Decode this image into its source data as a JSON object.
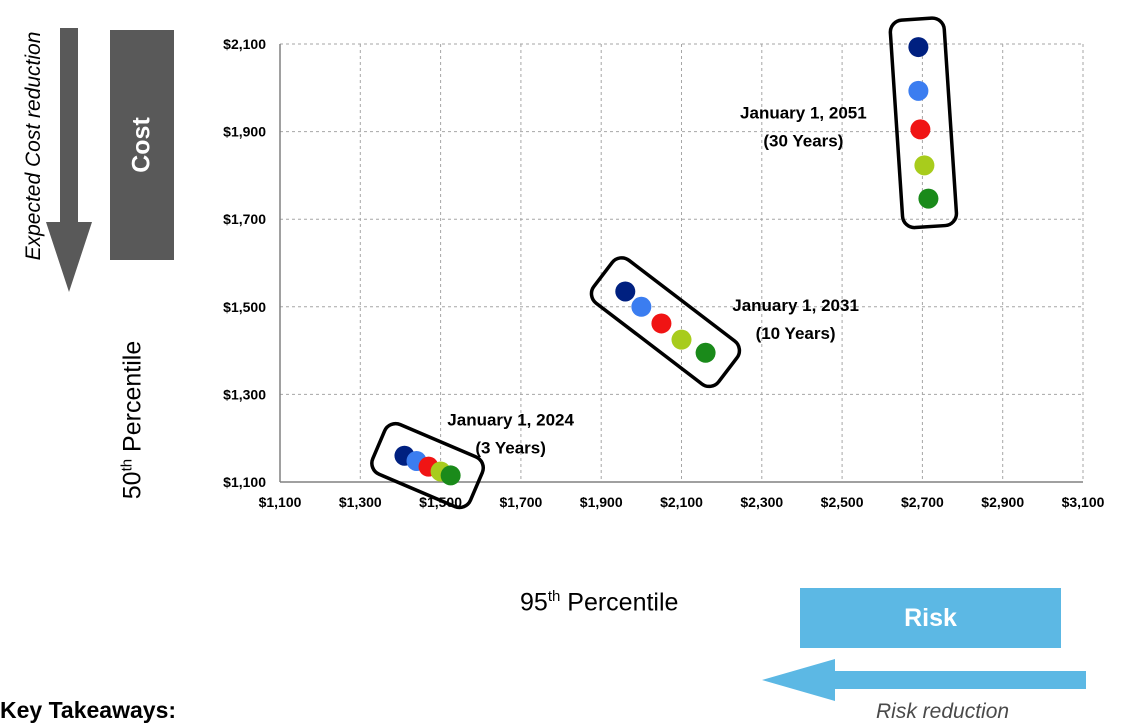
{
  "chart_data": {
    "type": "scatter",
    "xlabel": "95th Percentile",
    "ylabel": "50th Percentile",
    "xlim": [
      1100,
      3100
    ],
    "ylim": [
      1100,
      2100
    ],
    "x_ticks": [
      1100,
      1300,
      1500,
      1700,
      1900,
      2100,
      2300,
      2500,
      2700,
      2900,
      3100
    ],
    "y_ticks": [
      1100,
      1300,
      1500,
      1700,
      1900,
      2100
    ],
    "x_tick_labels": [
      "$1,100",
      "$1,300",
      "$1,500",
      "$1,700",
      "$1,900",
      "$2,100",
      "$2,300",
      "$2,500",
      "$2,700",
      "$2,900",
      "$3,100"
    ],
    "y_tick_labels": [
      "$1,100",
      "$1,300",
      "$1,500",
      "$1,700",
      "$1,900",
      "$2,100"
    ],
    "grid": true,
    "point_colors": [
      "#002080",
      "#3b7df0",
      "#f01414",
      "#a8cc1c",
      "#1a8a1a"
    ],
    "groups": [
      {
        "label_line1": "January 1, 2024",
        "label_line2": "(3 Years)",
        "points": [
          {
            "x": 1410,
            "y": 1160
          },
          {
            "x": 1440,
            "y": 1148
          },
          {
            "x": 1470,
            "y": 1135
          },
          {
            "x": 1500,
            "y": 1124
          },
          {
            "x": 1525,
            "y": 1115
          }
        ]
      },
      {
        "label_line1": "January 1, 2031",
        "label_line2": "(10 Years)",
        "points": [
          {
            "x": 1960,
            "y": 1535
          },
          {
            "x": 2000,
            "y": 1500
          },
          {
            "x": 2050,
            "y": 1462
          },
          {
            "x": 2100,
            "y": 1425
          },
          {
            "x": 2160,
            "y": 1395
          }
        ]
      },
      {
        "label_line1": "January 1, 2051",
        "label_line2": "(30 Years)",
        "points": [
          {
            "x": 2690,
            "y": 2093
          },
          {
            "x": 2690,
            "y": 1993
          },
          {
            "x": 2695,
            "y": 1905
          },
          {
            "x": 2705,
            "y": 1823
          },
          {
            "x": 2715,
            "y": 1747
          }
        ]
      }
    ]
  },
  "labels": {
    "cost": "Cost",
    "cost_caption": "Expected Cost reduction",
    "ylabel_prefix": "50",
    "ylabel_sup": "th",
    "ylabel_suffix": " Percentile",
    "xlabel_prefix": "95",
    "xlabel_sup": "th",
    "xlabel_suffix": " Percentile",
    "risk": "Risk",
    "risk_caption": "Risk reduction",
    "takeaways_heading": "Key Takeaways:"
  },
  "colors": {
    "cost_box": "#595959",
    "risk_box": "#5cb8e4",
    "cost_arrow": "#595959",
    "risk_arrow": "#5cb8e4"
  }
}
